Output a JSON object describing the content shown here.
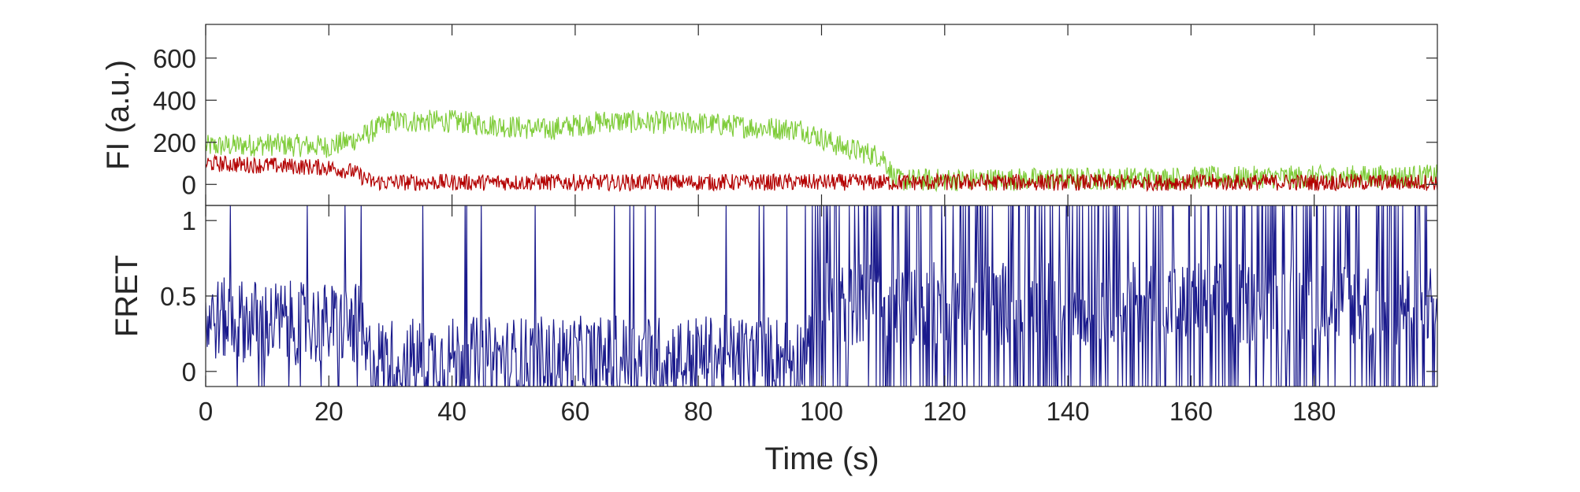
{
  "chart_data": [
    {
      "type": "line",
      "ylabel": "FI (a.u.)",
      "xlabel": "",
      "xlim": [
        0,
        200
      ],
      "ylim": [
        -100,
        760
      ],
      "yticks": [
        "0",
        "200",
        "400",
        "600"
      ],
      "ytick_values": [
        0,
        200,
        400,
        600
      ],
      "grid": false,
      "series": [
        {
          "color": "#7fcc3a",
          "segments": [
            {
              "x": [
                0,
                10,
                20,
                25,
                30,
                40,
                55,
                65,
                80,
                90,
                97,
                103,
                110,
                112,
                200
              ],
              "y": [
                180,
                190,
                180,
                220,
                300,
                300,
                260,
                300,
                290,
                270,
                260,
                180,
                130,
                20,
                40
              ]
            }
          ],
          "noise": 55
        },
        {
          "color": "#b30000",
          "segments": [
            {
              "x": [
                0,
                10,
                20,
                24,
                27,
                200
              ],
              "y": [
                100,
                90,
                80,
                60,
                10,
                10
              ]
            }
          ],
          "noise": 40
        }
      ]
    },
    {
      "type": "line",
      "ylabel": "FRET",
      "xlabel": "Time (s)",
      "xlim": [
        0,
        200
      ],
      "ylim": [
        -0.1,
        1.1
      ],
      "yticks": [
        "0",
        "0.5",
        "1"
      ],
      "ytick_values": [
        0,
        0.5,
        1
      ],
      "xticks": [
        "0",
        "20",
        "40",
        "60",
        "80",
        "100",
        "120",
        "140",
        "160",
        "180"
      ],
      "xtick_values": [
        0,
        20,
        40,
        60,
        80,
        100,
        120,
        140,
        160,
        180
      ],
      "grid": false,
      "series": [
        {
          "color": "#1a1a8c",
          "segments": [
            {
              "x": [
                0,
                25,
                26,
                98,
                99,
                200
              ],
              "y": [
                0.35,
                0.3,
                0.08,
                0.1,
                0.45,
                0.45
              ]
            }
          ],
          "noise": 0.28
        }
      ]
    }
  ]
}
